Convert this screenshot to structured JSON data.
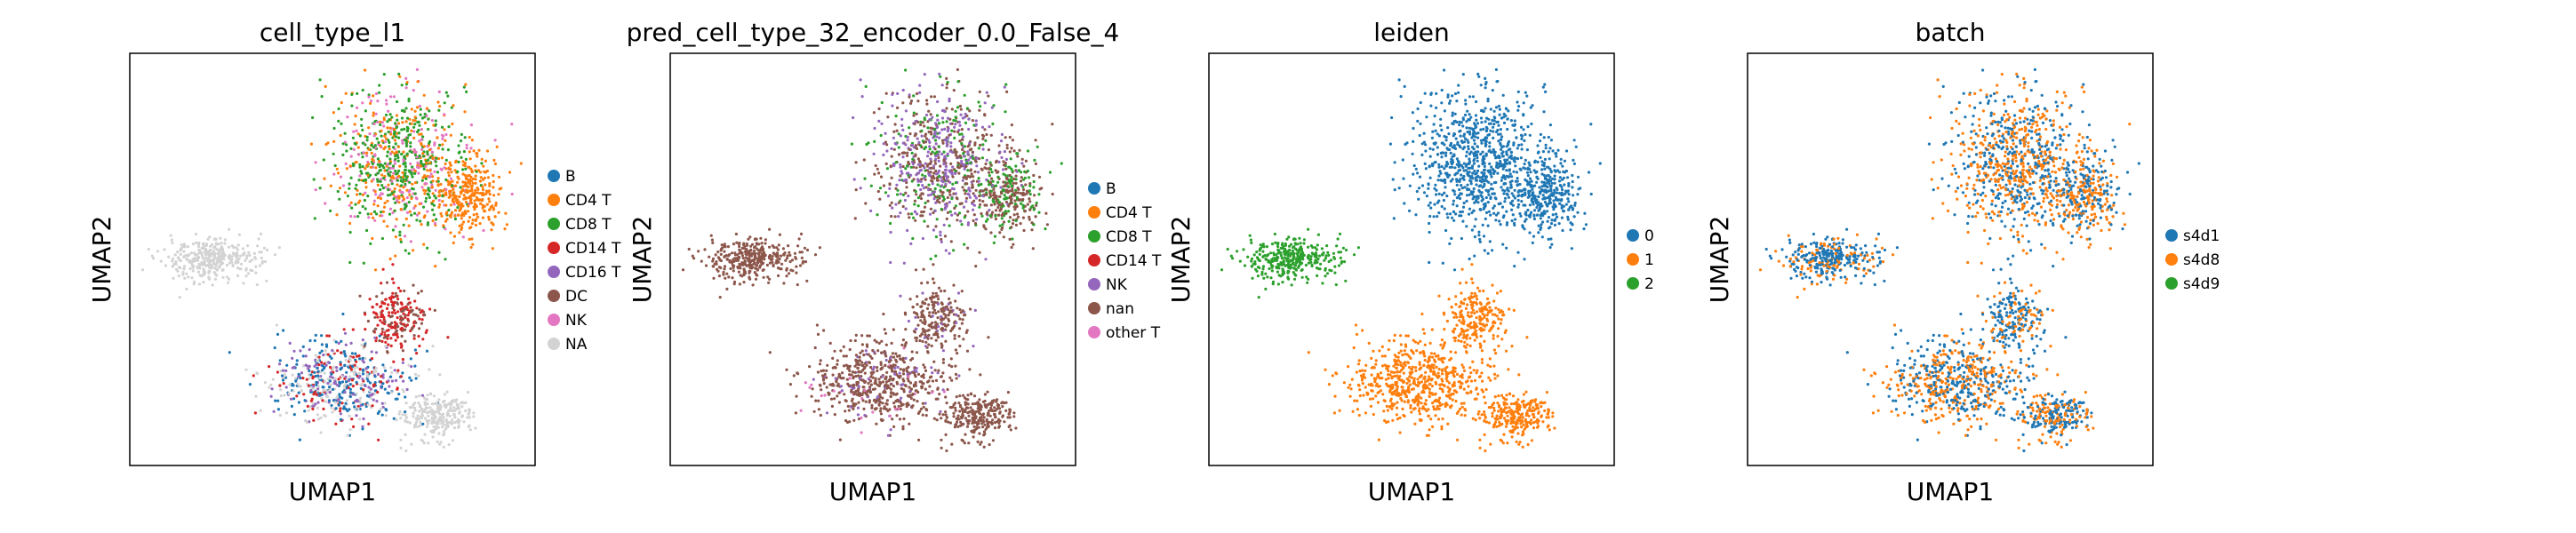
{
  "chart_data": [
    {
      "type": "scatter",
      "title": "cell_type_l1",
      "xlabel": "UMAP1",
      "ylabel": "UMAP2",
      "legend_position": "right",
      "series": [
        {
          "name": "B",
          "color": "#1f77b4"
        },
        {
          "name": "CD4 T",
          "color": "#ff7f0e"
        },
        {
          "name": "CD8 T",
          "color": "#2ca02c"
        },
        {
          "name": "CD14 T",
          "color": "#d62728"
        },
        {
          "name": "CD16 T",
          "color": "#9467bd"
        },
        {
          "name": "DC",
          "color": "#8c564b"
        },
        {
          "name": "NK",
          "color": "#e377c2"
        },
        {
          "name": "NA",
          "color": "#d3d3d3"
        }
      ]
    },
    {
      "type": "scatter",
      "title": "pred_cell_type_32_encoder_0.0_False_4",
      "xlabel": "UMAP1",
      "ylabel": "UMAP2",
      "legend_position": "right",
      "series": [
        {
          "name": "B",
          "color": "#1f77b4"
        },
        {
          "name": "CD4 T",
          "color": "#ff7f0e"
        },
        {
          "name": "CD8 T",
          "color": "#2ca02c"
        },
        {
          "name": "CD14 T",
          "color": "#d62728"
        },
        {
          "name": "NK",
          "color": "#9467bd"
        },
        {
          "name": "nan",
          "color": "#8c564b"
        },
        {
          "name": "other T",
          "color": "#e377c2"
        }
      ]
    },
    {
      "type": "scatter",
      "title": "leiden",
      "xlabel": "UMAP1",
      "ylabel": "UMAP2",
      "legend_position": "right",
      "series": [
        {
          "name": "0",
          "color": "#1f77b4"
        },
        {
          "name": "1",
          "color": "#ff7f0e"
        },
        {
          "name": "2",
          "color": "#2ca02c"
        }
      ]
    },
    {
      "type": "scatter",
      "title": "batch",
      "xlabel": "UMAP1",
      "ylabel": "UMAP2",
      "legend_position": "right",
      "series": [
        {
          "name": "s4d1",
          "color": "#1f77b4"
        },
        {
          "name": "s4d8",
          "color": "#ff7f0e"
        },
        {
          "name": "s4d9",
          "color": "#2ca02c"
        }
      ]
    }
  ]
}
